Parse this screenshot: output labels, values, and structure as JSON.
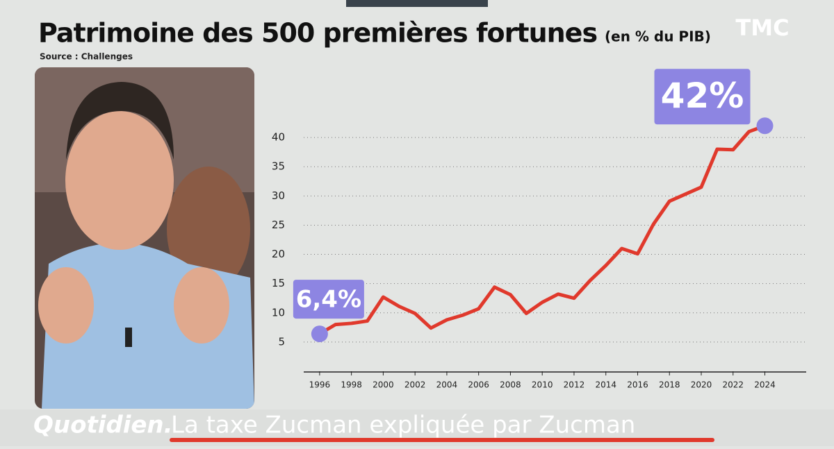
{
  "channel": "TMC",
  "show": "Quotidien.",
  "caption": "La taxe Zucman expliquée par Zucman",
  "chart_data": {
    "type": "line",
    "title": "Patrimoine des 500 premières fortunes",
    "subtitle": "(en % du PIB)",
    "source": "Source : Challenges",
    "x": [
      1996,
      1997,
      1998,
      1999,
      2000,
      2001,
      2002,
      2003,
      2004,
      2005,
      2006,
      2007,
      2008,
      2009,
      2010,
      2011,
      2012,
      2013,
      2014,
      2015,
      2016,
      2017,
      2018,
      2019,
      2020,
      2021,
      2022,
      2023,
      2024
    ],
    "values": [
      6.4,
      8.0,
      8.2,
      8.6,
      12.7,
      11.1,
      9.9,
      7.4,
      8.8,
      9.6,
      10.7,
      14.4,
      13.1,
      9.9,
      11.8,
      13.2,
      12.5,
      15.5,
      18.1,
      21.0,
      20.1,
      25.2,
      29.1,
      30.3,
      31.5,
      38.0,
      37.9,
      41.0,
      42
    ],
    "value_labels": [
      "6,4%",
      null,
      null,
      null,
      null,
      null,
      null,
      null,
      null,
      null,
      null,
      null,
      null,
      null,
      null,
      null,
      null,
      null,
      null,
      null,
      null,
      null,
      null,
      null,
      null,
      null,
      null,
      null,
      "42%"
    ],
    "color": "#e0392c",
    "marker_color": "#8d85e2",
    "xlim": [
      1995,
      2026.6
    ],
    "xticks": [
      1996,
      1998,
      2000,
      2002,
      2004,
      2006,
      2008,
      2010,
      2012,
      2014,
      2016,
      2018,
      2020,
      2022,
      2024
    ],
    "ylim": [
      0,
      45
    ],
    "yticks": [
      5,
      10,
      15,
      20,
      25,
      30,
      35,
      40
    ],
    "grid": true
  }
}
